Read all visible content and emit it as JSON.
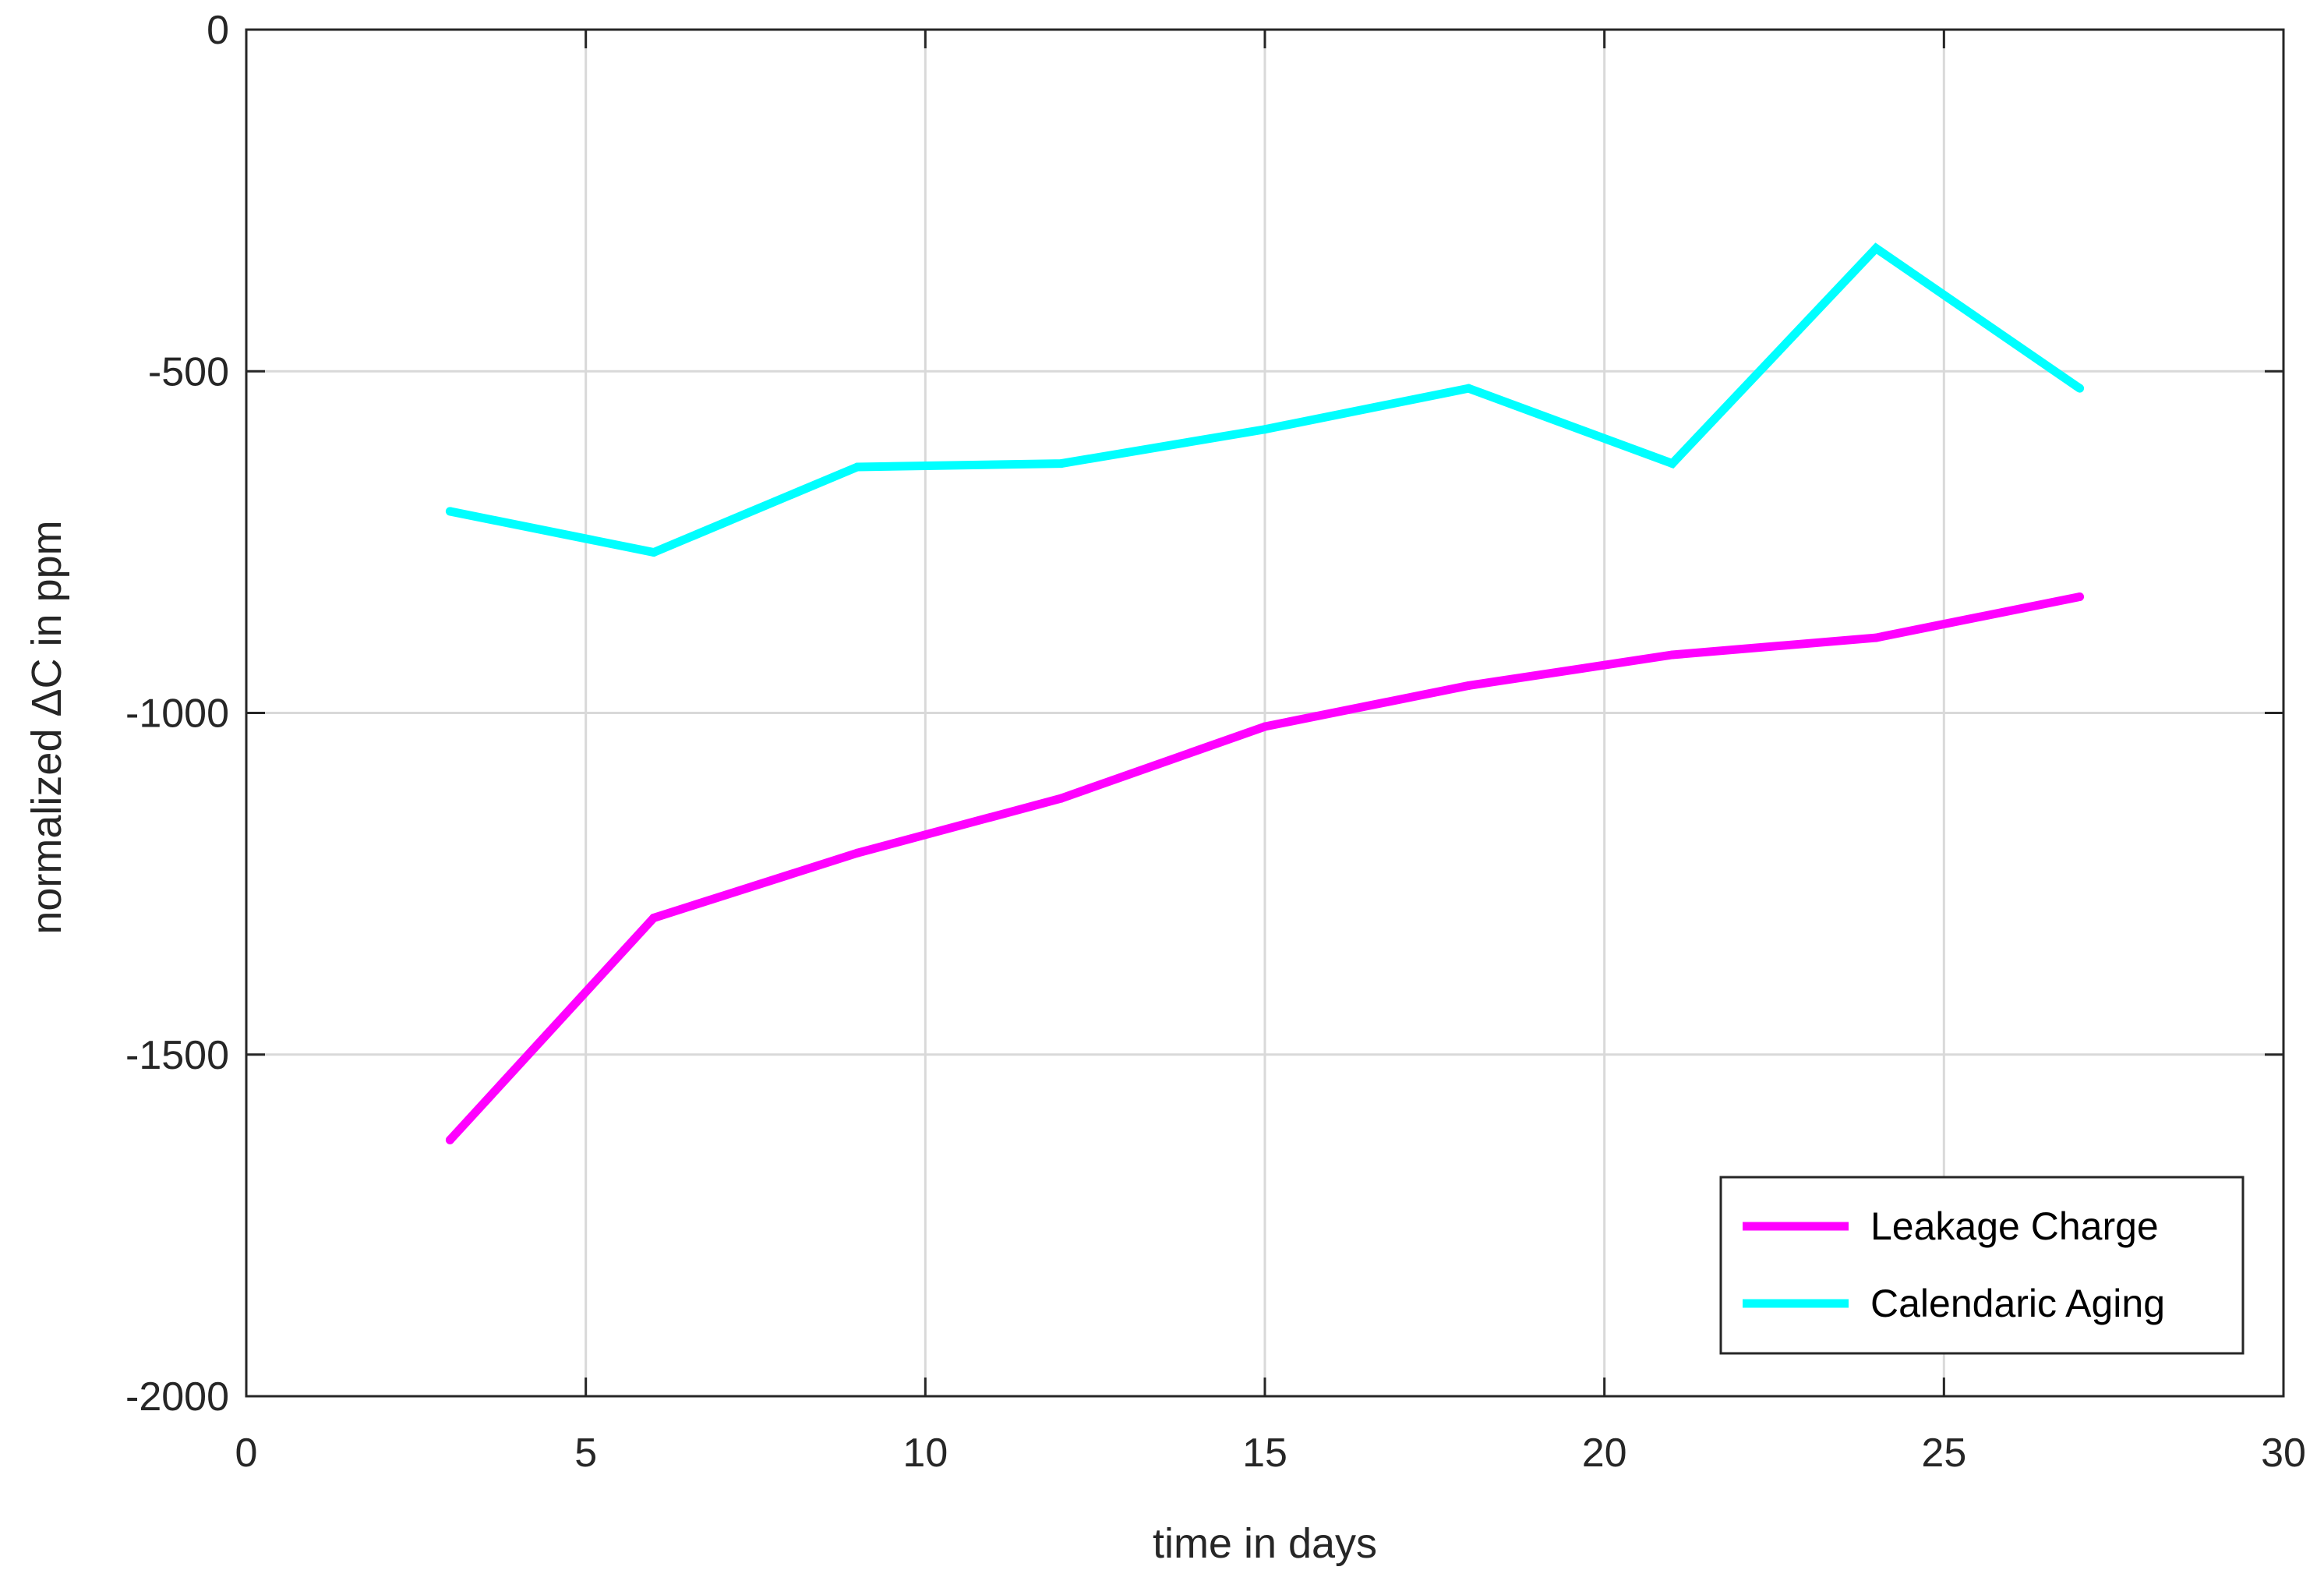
{
  "chart_data": {
    "type": "line",
    "title": "",
    "xlabel": "time in days",
    "ylabel": "normalized ΔC in ppm",
    "xlim": [
      0,
      30
    ],
    "ylim": [
      -2000,
      0
    ],
    "xticks": [
      0,
      5,
      10,
      15,
      20,
      25,
      30
    ],
    "yticks": [
      0,
      -500,
      -1000,
      -1500,
      -2000
    ],
    "grid": true,
    "legend_position": "bottom-right",
    "x": [
      3,
      6,
      9,
      12,
      15,
      18,
      21,
      24,
      27
    ],
    "series": [
      {
        "name": "Leakage Charge",
        "color": "#ff00ff",
        "values": [
          -1625,
          -1300,
          -1205,
          -1125,
          -1020,
          -960,
          -915,
          -890,
          -830
        ]
      },
      {
        "name": "Calendaric Aging",
        "color": "#00ffff",
        "values": [
          -705,
          -765,
          -640,
          -635,
          -585,
          -525,
          -635,
          -320,
          -525
        ]
      }
    ]
  }
}
